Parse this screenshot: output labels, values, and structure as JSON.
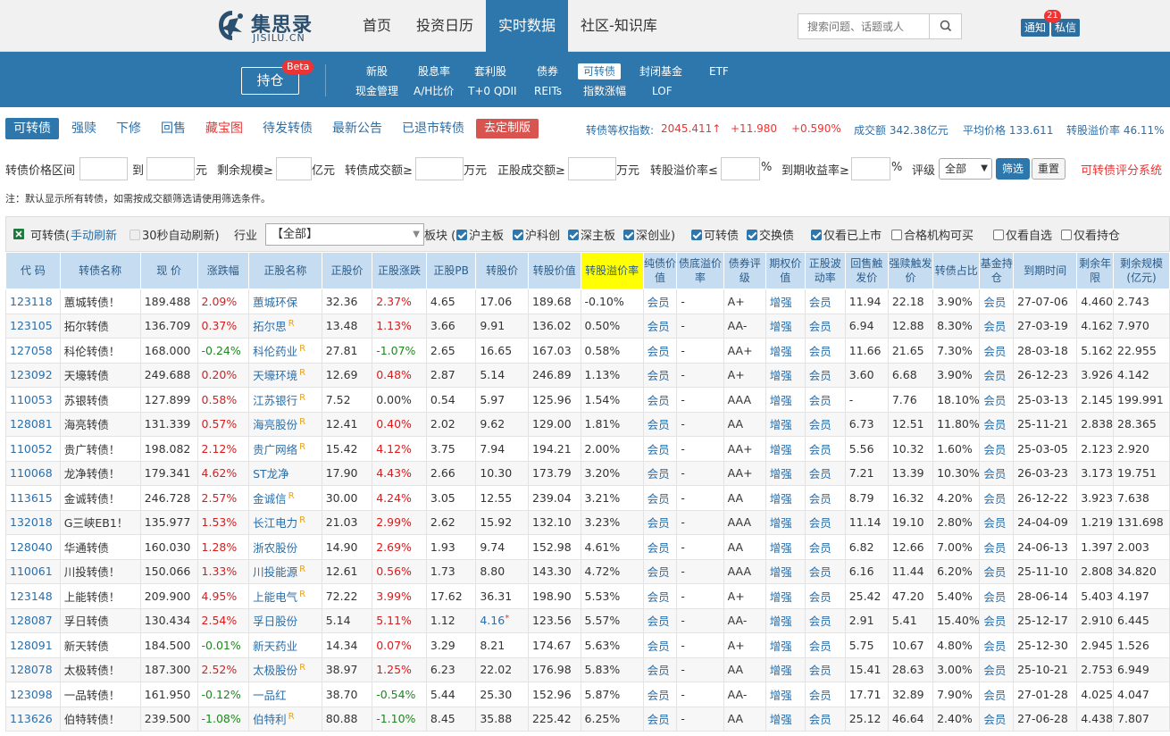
{
  "logo": {
    "cn": "集思录",
    "en": "JISILU.CN"
  },
  "nav": [
    "首页",
    "投资日历",
    "实时数据",
    "社区-知识库"
  ],
  "search": {
    "placeholder": "搜索问题、话题或人"
  },
  "notify": {
    "label": "通知",
    "count": "21",
    "msg": "私信"
  },
  "subnav": {
    "hold": "持仓",
    "beta": "Beta",
    "row1": [
      "新股",
      "股息率",
      "套利股",
      "债券",
      "可转债",
      "封闭基金",
      "ETF"
    ],
    "row2": [
      "现金管理",
      "A/H比价",
      "T+0 QDII",
      "REITs",
      "指数涨幅",
      "LOF"
    ]
  },
  "tabs": [
    "可转债",
    "强赎",
    "下修",
    "回售",
    "藏宝图",
    "待发转债",
    "最新公告",
    "已退市转债",
    "去定制版"
  ],
  "stats": {
    "index_label": "转债等权指数:",
    "index_value": "2045.411↑",
    "change": "+11.980",
    "pct": "+0.590%",
    "turnover": "成交额 342.38亿元",
    "avg": "平均价格 133.611",
    "premium": "转股溢价率 46.11%"
  },
  "filters": {
    "price": "转债价格区间",
    "to": "到",
    "yuan": "元",
    "scale": "剩余规模≥",
    "yiyuan": "亿元",
    "vol": "转债成交额≥",
    "wanyuan": "万元",
    "svol": "正股成交额≥",
    "wanyuan2": "万元",
    "prem": "转股溢价率≤",
    "pct": "%",
    "ytm": "到期收益率≥",
    "pct2": "%",
    "rating": "评级",
    "rating_val": "全部",
    "filter_btn": "筛选",
    "reset_btn": "重置",
    "score": "可转债评分系统"
  },
  "note": "注：默认显示所有转债，如需按成交额筛选请使用筛选条件。",
  "toolbar": {
    "title": "可转债(",
    "manual": "手动刷新",
    "auto": "30秒自动刷新)",
    "industry": "行业",
    "industry_val": "【全部】",
    "board": "板块 (",
    "b1": "沪主板",
    "b2": "沪科创",
    "b3": "深主板",
    "b4": "深创业)",
    "c1": "可转债",
    "c2": "交换债",
    "c3": "仅看已上市",
    "c4": "合格机构可买",
    "c5": "仅看自选",
    "c6": "仅看持仓"
  },
  "headers": [
    "代 码",
    "转债名称",
    "现 价",
    "涨跌幅",
    "正股名称",
    "正股价",
    "正股涨跌",
    "正股PB",
    "转股价",
    "转股价值",
    "转股溢价率",
    "纯债价值",
    "债底溢价率",
    "债券评级",
    "期权价值",
    "正股波动率",
    "回售触发价",
    "强赎触发价",
    "转债占比",
    "基金持仓",
    "到期时间",
    "剩余年限",
    "剩余规模(亿元)"
  ],
  "rows": [
    [
      "123118",
      "蕙城转债！",
      "189.488",
      "2.09%",
      "蕙城环保",
      "",
      "32.36",
      "2.37%",
      "4.65",
      "17.06",
      "189.68",
      "-0.10%",
      "会员",
      "-",
      "A+",
      "增强",
      "会员",
      "11.94",
      "22.18",
      "3.90%",
      "会员",
      "27-07-06",
      "4.460",
      "2.743"
    ],
    [
      "123105",
      "拓尔转债",
      "136.709",
      "0.37%",
      "拓尔思",
      "R",
      "13.48",
      "1.13%",
      "3.66",
      "9.91",
      "136.02",
      "0.50%",
      "会员",
      "-",
      "AA-",
      "增强",
      "会员",
      "6.94",
      "12.88",
      "8.30%",
      "会员",
      "27-03-19",
      "4.162",
      "7.970"
    ],
    [
      "127058",
      "科伦转债！",
      "168.000",
      "-0.24%",
      "科伦药业",
      "R",
      "27.81",
      "-1.07%",
      "2.65",
      "16.65",
      "167.03",
      "0.58%",
      "会员",
      "-",
      "AA+",
      "增强",
      "会员",
      "11.66",
      "21.65",
      "7.30%",
      "会员",
      "28-03-18",
      "5.162",
      "22.955"
    ],
    [
      "123092",
      "天壕转债",
      "249.688",
      "0.20%",
      "天壕环境",
      "R",
      "12.69",
      "0.48%",
      "2.87",
      "5.14",
      "246.89",
      "1.13%",
      "会员",
      "-",
      "A+",
      "增强",
      "会员",
      "3.60",
      "6.68",
      "3.90%",
      "会员",
      "26-12-23",
      "3.926",
      "4.142"
    ],
    [
      "110053",
      "苏银转债",
      "127.899",
      "0.58%",
      "江苏银行",
      "R",
      "7.52",
      "0.00%",
      "0.54",
      "5.97",
      "125.96",
      "1.54%",
      "会员",
      "-",
      "AAA",
      "增强",
      "会员",
      "-",
      "7.76",
      "18.10%",
      "会员",
      "25-03-13",
      "2.145",
      "199.991"
    ],
    [
      "128081",
      "海亮转债",
      "131.339",
      "0.57%",
      "海亮股份",
      "R",
      "12.41",
      "0.40%",
      "2.02",
      "9.62",
      "129.00",
      "1.81%",
      "会员",
      "-",
      "AA",
      "增强",
      "会员",
      "6.73",
      "12.51",
      "11.80%",
      "会员",
      "25-11-21",
      "2.838",
      "28.365"
    ],
    [
      "110052",
      "贵广转债！",
      "198.082",
      "2.12%",
      "贵广网络",
      "R",
      "15.42",
      "4.12%",
      "3.75",
      "7.94",
      "194.21",
      "2.00%",
      "会员",
      "-",
      "AA+",
      "增强",
      "会员",
      "5.56",
      "10.32",
      "1.60%",
      "会员",
      "25-03-05",
      "2.123",
      "2.920"
    ],
    [
      "110068",
      "龙净转债！",
      "179.341",
      "4.62%",
      "ST龙净",
      "",
      "17.90",
      "4.43%",
      "2.66",
      "10.30",
      "173.79",
      "3.20%",
      "会员",
      "-",
      "AA+",
      "增强",
      "会员",
      "7.21",
      "13.39",
      "10.30%",
      "会员",
      "26-03-23",
      "3.173",
      "19.751"
    ],
    [
      "113615",
      "金诚转债！",
      "246.728",
      "2.57%",
      "金诚信",
      "R",
      "30.00",
      "4.24%",
      "3.05",
      "12.55",
      "239.04",
      "3.21%",
      "会员",
      "-",
      "AA",
      "增强",
      "会员",
      "8.79",
      "16.32",
      "4.20%",
      "会员",
      "26-12-22",
      "3.923",
      "7.638"
    ],
    [
      "132018",
      "G三峡EB1！",
      "135.977",
      "1.53%",
      "长江电力",
      "R",
      "21.03",
      "2.99%",
      "2.62",
      "15.92",
      "132.10",
      "3.23%",
      "会员",
      "-",
      "AAA",
      "增强",
      "会员",
      "11.14",
      "19.10",
      "2.80%",
      "会员",
      "24-04-09",
      "1.219",
      "131.698"
    ],
    [
      "128040",
      "华通转债",
      "160.030",
      "1.28%",
      "浙农股份",
      "",
      "14.90",
      "2.69%",
      "1.93",
      "9.74",
      "152.98",
      "4.61%",
      "会员",
      "-",
      "AA",
      "增强",
      "会员",
      "6.82",
      "12.66",
      "7.00%",
      "会员",
      "24-06-13",
      "1.397",
      "2.003"
    ],
    [
      "110061",
      "川投转债！",
      "150.066",
      "1.33%",
      "川投能源",
      "R",
      "12.61",
      "0.56%",
      "1.73",
      "8.80",
      "143.30",
      "4.72%",
      "会员",
      "-",
      "AAA",
      "增强",
      "会员",
      "6.16",
      "11.44",
      "6.20%",
      "会员",
      "25-11-10",
      "2.808",
      "34.820"
    ],
    [
      "123148",
      "上能转债！",
      "209.900",
      "4.95%",
      "上能电气",
      "R",
      "72.22",
      "3.99%",
      "17.62",
      "36.31",
      "198.90",
      "5.53%",
      "会员",
      "-",
      "A+",
      "增强",
      "会员",
      "25.42",
      "47.20",
      "5.40%",
      "会员",
      "28-06-14",
      "5.403",
      "4.197"
    ],
    [
      "128087",
      "孚日转债",
      "130.434",
      "2.54%",
      "孚日股份",
      "",
      "5.14",
      "5.11%",
      "1.12",
      "4.16*",
      "123.56",
      "5.57%",
      "会员",
      "-",
      "AA-",
      "增强",
      "会员",
      "2.91",
      "5.41",
      "15.40%",
      "会员",
      "25-12-17",
      "2.910",
      "6.445"
    ],
    [
      "128091",
      "新天转债",
      "184.500",
      "-0.01%",
      "新天药业",
      "",
      "14.34",
      "0.07%",
      "3.29",
      "8.21",
      "174.67",
      "5.63%",
      "会员",
      "-",
      "A+",
      "增强",
      "会员",
      "5.75",
      "10.67",
      "4.80%",
      "会员",
      "25-12-30",
      "2.945",
      "1.526"
    ],
    [
      "128078",
      "太极转债！",
      "187.300",
      "2.52%",
      "太极股份",
      "R",
      "38.97",
      "1.25%",
      "6.23",
      "22.02",
      "176.98",
      "5.83%",
      "会员",
      "-",
      "AA",
      "增强",
      "会员",
      "15.41",
      "28.63",
      "3.00%",
      "会员",
      "25-10-21",
      "2.753",
      "6.949"
    ],
    [
      "123098",
      "一品转债！",
      "161.950",
      "-0.12%",
      "一品红",
      "",
      "38.70",
      "-0.54%",
      "5.44",
      "25.30",
      "152.96",
      "5.87%",
      "会员",
      "-",
      "AA-",
      "增强",
      "会员",
      "17.71",
      "32.89",
      "7.90%",
      "会员",
      "27-01-28",
      "4.025",
      "4.047"
    ],
    [
      "113626",
      "伯特转债！",
      "239.500",
      "-1.08%",
      "伯特利",
      "R",
      "80.88",
      "-1.10%",
      "8.45",
      "35.88",
      "225.42",
      "6.25%",
      "会员",
      "-",
      "AA",
      "增强",
      "会员",
      "25.12",
      "46.64",
      "2.40%",
      "会员",
      "27-06-28",
      "4.438",
      "7.807"
    ]
  ]
}
